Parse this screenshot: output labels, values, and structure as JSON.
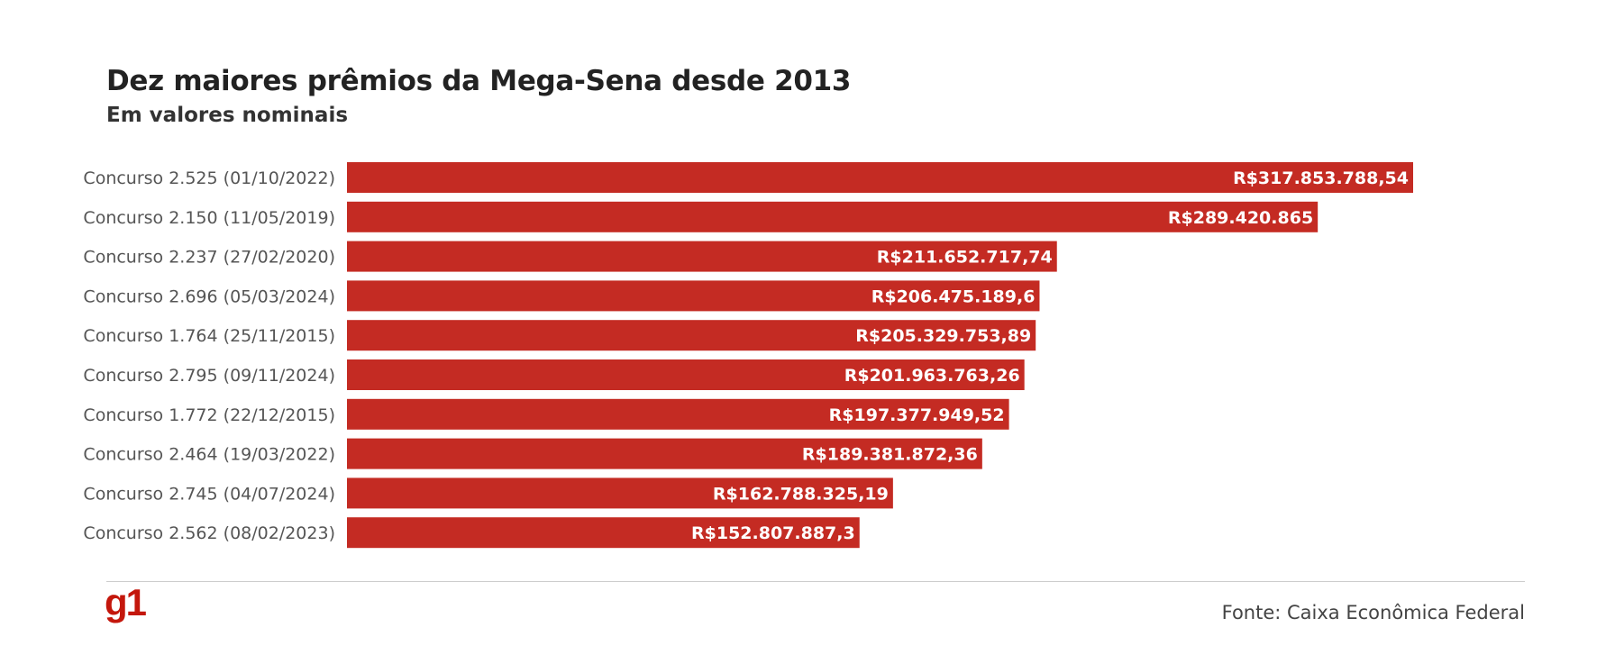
{
  "chart_data": {
    "type": "bar",
    "orientation": "horizontal",
    "title": "Dez maiores prêmios da Mega-Sena desde 2013",
    "subtitle": "Em valores nominais",
    "categories": [
      "Concurso 2.525 (01/10/2022)",
      "Concurso 2.150 (11/05/2019)",
      "Concurso 2.237 (27/02/2020)",
      "Concurso 2.696 (05/03/2024)",
      "Concurso 1.764 (25/11/2015)",
      "Concurso 2.795 (09/11/2024)",
      "Concurso 1.772 (22/12/2015)",
      "Concurso 2.464 (19/03/2022)",
      "Concurso 2.745 (04/07/2024)",
      "Concurso 2.562 (08/02/2023)"
    ],
    "values": [
      317853788.54,
      289420865,
      211652717.74,
      206475189.6,
      205329753.89,
      201963763.26,
      197377949.52,
      189381872.36,
      162788325.19,
      152807887.3
    ],
    "value_labels": [
      "R$317.853.788,54",
      "R$289.420.865",
      "R$211.652.717,74",
      "R$206.475.189,6",
      "R$205.329.753,89",
      "R$201.963.763,26",
      "R$197.377.949,52",
      "R$189.381.872,36",
      "R$162.788.325,19",
      "R$152.807.887,3"
    ],
    "xlabel": "",
    "ylabel": "",
    "xlim": [
      0,
      317853788.54
    ],
    "grid": false,
    "legend": "none",
    "bar_color": "#c42b23"
  },
  "footer": {
    "logo_text": "g1",
    "logo_color": "#c4170c",
    "source": "Fonte: Caixa Econômica Federal"
  }
}
